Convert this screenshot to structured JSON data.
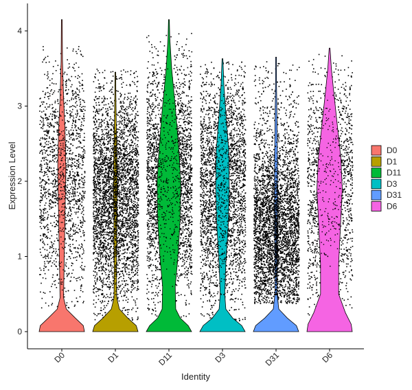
{
  "chart_data": {
    "type": "violin",
    "title": "",
    "xlabel": "Identity",
    "ylabel": "Expression Level",
    "ylim": [
      -0.22,
      4.25
    ],
    "yticks": [
      0,
      1,
      2,
      3,
      4
    ],
    "ytick_labels": [
      "0",
      "1",
      "2",
      "3",
      "4"
    ],
    "grid": false,
    "legend_position": "right",
    "categories": [
      "D0",
      "D1",
      "D11",
      "D3",
      "D31",
      "D6"
    ],
    "series": [
      {
        "name": "D0",
        "color": "#F8766D",
        "max": 4.15,
        "main_mode": 2.2,
        "zero_fraction": 0.55,
        "points": 1600
      },
      {
        "name": "D1",
        "color": "#B79F00",
        "max": 3.45,
        "main_mode": 1.8,
        "zero_fraction": 0.5,
        "points": 3600
      },
      {
        "name": "D11",
        "color": "#00BA38",
        "max": 4.15,
        "main_mode": 2.0,
        "zero_fraction": 0.25,
        "points": 3000
      },
      {
        "name": "D3",
        "color": "#00BFC4",
        "max": 3.63,
        "main_mode": 2.0,
        "zero_fraction": 0.3,
        "points": 2800
      },
      {
        "name": "D31",
        "color": "#619CFF",
        "max": 3.65,
        "main_mode": 1.3,
        "zero_fraction": 0.45,
        "points": 4200
      },
      {
        "name": "D6",
        "color": "#F564E3",
        "max": 3.77,
        "main_mode": 1.9,
        "zero_fraction": 0.35,
        "points": 1600
      }
    ]
  }
}
